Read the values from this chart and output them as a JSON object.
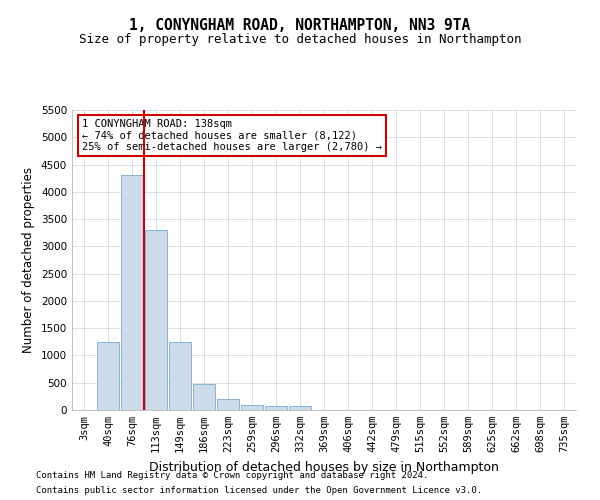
{
  "title": "1, CONYNGHAM ROAD, NORTHAMPTON, NN3 9TA",
  "subtitle": "Size of property relative to detached houses in Northampton",
  "xlabel": "Distribution of detached houses by size in Northampton",
  "ylabel": "Number of detached properties",
  "bar_color": "#ccdaea",
  "bar_edge_color": "#7aaacb",
  "vline_color": "#cc0000",
  "categories": [
    "3sqm",
    "40sqm",
    "76sqm",
    "113sqm",
    "149sqm",
    "186sqm",
    "223sqm",
    "259sqm",
    "296sqm",
    "332sqm",
    "369sqm",
    "406sqm",
    "442sqm",
    "479sqm",
    "515sqm",
    "552sqm",
    "589sqm",
    "625sqm",
    "662sqm",
    "698sqm",
    "735sqm"
  ],
  "values": [
    0,
    1250,
    4300,
    3300,
    1250,
    480,
    200,
    100,
    75,
    75,
    0,
    0,
    0,
    0,
    0,
    0,
    0,
    0,
    0,
    0,
    0
  ],
  "vline_x": 2.5,
  "ylim": [
    0,
    5500
  ],
  "yticks": [
    0,
    500,
    1000,
    1500,
    2000,
    2500,
    3000,
    3500,
    4000,
    4500,
    5000,
    5500
  ],
  "annotation_text": "1 CONYNGHAM ROAD: 138sqm\n← 74% of detached houses are smaller (8,122)\n25% of semi-detached houses are larger (2,780) →",
  "footer_line1": "Contains HM Land Registry data © Crown copyright and database right 2024.",
  "footer_line2": "Contains public sector information licensed under the Open Government Licence v3.0.",
  "bg_color": "#ffffff",
  "grid_color": "#c8d4e0",
  "title_fontsize": 10.5,
  "subtitle_fontsize": 9,
  "ylabel_fontsize": 8.5,
  "xlabel_fontsize": 9,
  "tick_fontsize": 7.5,
  "annot_fontsize": 7.5,
  "footer_fontsize": 6.5
}
